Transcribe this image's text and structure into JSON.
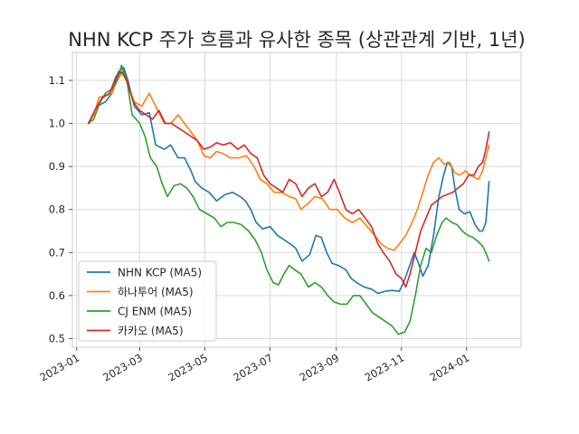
{
  "chart_data": {
    "type": "line",
    "title": "NHN KCP 주가 흐름과 유사한 종목 (상관관계 기반, 1년)",
    "xlabel": "",
    "ylabel": "",
    "xlim": [
      "2022-12-28",
      "2024-02-21"
    ],
    "ylim": [
      0.48,
      1.165
    ],
    "yticks": [
      0.5,
      0.6,
      0.7,
      0.8,
      0.9,
      1.0,
      1.1
    ],
    "ytick_labels": [
      "0.5",
      "0.6",
      "0.7",
      "0.8",
      "0.9",
      "1.0",
      "1.1"
    ],
    "xticks": [
      "2023-01-01",
      "2023-03-01",
      "2023-05-01",
      "2023-07-01",
      "2023-09-01",
      "2023-11-01",
      "2024-01-01"
    ],
    "xtick_labels": [
      "2023-01",
      "2023-03",
      "2023-05",
      "2023-07",
      "2023-09",
      "2023-11",
      "2024-01"
    ],
    "grid": true,
    "legend": "lower-left",
    "series": [
      {
        "name": "NHN KCP (MA5)",
        "color": "#1f77b4",
        "points": [
          [
            "2023-01-12",
            1.0
          ],
          [
            "2023-01-20",
            1.04
          ],
          [
            "2023-01-28",
            1.05
          ],
          [
            "2023-02-03",
            1.07
          ],
          [
            "2023-02-09",
            1.12
          ],
          [
            "2023-02-14",
            1.13
          ],
          [
            "2023-02-18",
            1.1
          ],
          [
            "2023-02-24",
            1.04
          ],
          [
            "2023-03-03",
            1.02
          ],
          [
            "2023-03-10",
            1.025
          ],
          [
            "2023-03-16",
            0.95
          ],
          [
            "2023-03-24",
            0.94
          ],
          [
            "2023-03-30",
            0.95
          ],
          [
            "2023-04-06",
            0.92
          ],
          [
            "2023-04-12",
            0.92
          ],
          [
            "2023-04-18",
            0.89
          ],
          [
            "2023-04-22",
            0.865
          ],
          [
            "2023-04-28",
            0.85
          ],
          [
            "2023-05-05",
            0.84
          ],
          [
            "2023-05-12",
            0.82
          ],
          [
            "2023-05-20",
            0.835
          ],
          [
            "2023-05-27",
            0.84
          ],
          [
            "2023-06-03",
            0.83
          ],
          [
            "2023-06-08",
            0.82
          ],
          [
            "2023-06-13",
            0.8
          ],
          [
            "2023-06-18",
            0.77
          ],
          [
            "2023-06-24",
            0.755
          ],
          [
            "2023-07-01",
            0.76
          ],
          [
            "2023-07-08",
            0.74
          ],
          [
            "2023-07-14",
            0.73
          ],
          [
            "2023-07-20",
            0.72
          ],
          [
            "2023-07-25",
            0.71
          ],
          [
            "2023-07-31",
            0.68
          ],
          [
            "2023-08-07",
            0.695
          ],
          [
            "2023-08-13",
            0.74
          ],
          [
            "2023-08-18",
            0.735
          ],
          [
            "2023-08-23",
            0.7
          ],
          [
            "2023-08-28",
            0.675
          ],
          [
            "2023-09-03",
            0.67
          ],
          [
            "2023-09-10",
            0.66
          ],
          [
            "2023-09-15",
            0.64
          ],
          [
            "2023-09-20",
            0.63
          ],
          [
            "2023-09-27",
            0.62
          ],
          [
            "2023-10-04",
            0.615
          ],
          [
            "2023-10-10",
            0.605
          ],
          [
            "2023-10-17",
            0.61
          ],
          [
            "2023-10-23",
            0.612
          ],
          [
            "2023-10-30",
            0.61
          ],
          [
            "2023-11-03",
            0.63
          ],
          [
            "2023-11-08",
            0.665
          ],
          [
            "2023-11-13",
            0.7
          ],
          [
            "2023-11-17",
            0.675
          ],
          [
            "2023-11-21",
            0.645
          ],
          [
            "2023-11-26",
            0.67
          ],
          [
            "2023-12-01",
            0.74
          ],
          [
            "2023-12-06",
            0.83
          ],
          [
            "2023-12-10",
            0.875
          ],
          [
            "2023-12-14",
            0.91
          ],
          [
            "2023-12-18",
            0.9
          ],
          [
            "2023-12-21",
            0.85
          ],
          [
            "2023-12-25",
            0.8
          ],
          [
            "2023-12-30",
            0.79
          ],
          [
            "2024-01-04",
            0.795
          ],
          [
            "2024-01-09",
            0.765
          ],
          [
            "2024-01-13",
            0.75
          ],
          [
            "2024-01-16",
            0.75
          ],
          [
            "2024-01-19",
            0.77
          ],
          [
            "2024-01-22",
            0.865
          ]
        ]
      },
      {
        "name": "하나투어 (MA5)",
        "color": "#ff7f0e",
        "points": [
          [
            "2023-01-12",
            1.0
          ],
          [
            "2023-01-17",
            1.02
          ],
          [
            "2023-01-22",
            1.06
          ],
          [
            "2023-01-28",
            1.065
          ],
          [
            "2023-02-03",
            1.07
          ],
          [
            "2023-02-08",
            1.1
          ],
          [
            "2023-02-13",
            1.12
          ],
          [
            "2023-02-18",
            1.09
          ],
          [
            "2023-02-24",
            1.05
          ],
          [
            "2023-03-03",
            1.04
          ],
          [
            "2023-03-10",
            1.07
          ],
          [
            "2023-03-16",
            1.04
          ],
          [
            "2023-03-24",
            1.0
          ],
          [
            "2023-03-30",
            1.0
          ],
          [
            "2023-04-06",
            1.02
          ],
          [
            "2023-04-12",
            1.0
          ],
          [
            "2023-04-18",
            0.98
          ],
          [
            "2023-04-24",
            0.96
          ],
          [
            "2023-04-30",
            0.925
          ],
          [
            "2023-05-06",
            0.92
          ],
          [
            "2023-05-12",
            0.935
          ],
          [
            "2023-05-18",
            0.93
          ],
          [
            "2023-05-25",
            0.92
          ],
          [
            "2023-06-02",
            0.92
          ],
          [
            "2023-06-09",
            0.925
          ],
          [
            "2023-06-16",
            0.9
          ],
          [
            "2023-06-22",
            0.87
          ],
          [
            "2023-06-28",
            0.86
          ],
          [
            "2023-07-05",
            0.84
          ],
          [
            "2023-07-12",
            0.84
          ],
          [
            "2023-07-19",
            0.83
          ],
          [
            "2023-07-25",
            0.825
          ],
          [
            "2023-07-30",
            0.8
          ],
          [
            "2023-08-06",
            0.815
          ],
          [
            "2023-08-12",
            0.83
          ],
          [
            "2023-08-19",
            0.825
          ],
          [
            "2023-08-26",
            0.8
          ],
          [
            "2023-09-02",
            0.8
          ],
          [
            "2023-09-09",
            0.78
          ],
          [
            "2023-09-16",
            0.77
          ],
          [
            "2023-09-23",
            0.78
          ],
          [
            "2023-09-30",
            0.76
          ],
          [
            "2023-10-07",
            0.74
          ],
          [
            "2023-10-13",
            0.72
          ],
          [
            "2023-10-19",
            0.71
          ],
          [
            "2023-10-25",
            0.705
          ],
          [
            "2023-10-30",
            0.72
          ],
          [
            "2023-11-05",
            0.74
          ],
          [
            "2023-11-11",
            0.77
          ],
          [
            "2023-11-16",
            0.8
          ],
          [
            "2023-11-21",
            0.84
          ],
          [
            "2023-11-26",
            0.88
          ],
          [
            "2023-12-01",
            0.91
          ],
          [
            "2023-12-06",
            0.92
          ],
          [
            "2023-12-11",
            0.905
          ],
          [
            "2023-12-16",
            0.91
          ],
          [
            "2023-12-21",
            0.885
          ],
          [
            "2023-12-26",
            0.88
          ],
          [
            "2023-12-31",
            0.89
          ],
          [
            "2024-01-04",
            0.88
          ],
          [
            "2024-01-08",
            0.875
          ],
          [
            "2024-01-12",
            0.87
          ],
          [
            "2024-01-16",
            0.89
          ],
          [
            "2024-01-20",
            0.93
          ],
          [
            "2024-01-22",
            0.95
          ]
        ]
      },
      {
        "name": "CJ ENM (MA5)",
        "color": "#2ca02c",
        "points": [
          [
            "2023-01-12",
            1.0
          ],
          [
            "2023-01-17",
            1.01
          ],
          [
            "2023-01-23",
            1.05
          ],
          [
            "2023-01-28",
            1.07
          ],
          [
            "2023-02-03",
            1.08
          ],
          [
            "2023-02-08",
            1.1
          ],
          [
            "2023-02-12",
            1.135
          ],
          [
            "2023-02-17",
            1.1
          ],
          [
            "2023-02-22",
            1.02
          ],
          [
            "2023-03-01",
            1.0
          ],
          [
            "2023-03-06",
            0.97
          ],
          [
            "2023-03-11",
            0.92
          ],
          [
            "2023-03-17",
            0.9
          ],
          [
            "2023-03-22",
            0.86
          ],
          [
            "2023-03-27",
            0.83
          ],
          [
            "2023-04-02",
            0.855
          ],
          [
            "2023-04-08",
            0.86
          ],
          [
            "2023-04-14",
            0.85
          ],
          [
            "2023-04-20",
            0.83
          ],
          [
            "2023-04-26",
            0.8
          ],
          [
            "2023-05-03",
            0.79
          ],
          [
            "2023-05-10",
            0.78
          ],
          [
            "2023-05-16",
            0.76
          ],
          [
            "2023-05-22",
            0.77
          ],
          [
            "2023-05-28",
            0.77
          ],
          [
            "2023-06-04",
            0.765
          ],
          [
            "2023-06-11",
            0.75
          ],
          [
            "2023-06-17",
            0.73
          ],
          [
            "2023-06-23",
            0.7
          ],
          [
            "2023-06-28",
            0.66
          ],
          [
            "2023-07-04",
            0.63
          ],
          [
            "2023-07-09",
            0.625
          ],
          [
            "2023-07-14",
            0.65
          ],
          [
            "2023-07-19",
            0.67
          ],
          [
            "2023-07-24",
            0.66
          ],
          [
            "2023-07-30",
            0.65
          ],
          [
            "2023-08-06",
            0.62
          ],
          [
            "2023-08-12",
            0.63
          ],
          [
            "2023-08-18",
            0.62
          ],
          [
            "2023-08-24",
            0.6
          ],
          [
            "2023-08-30",
            0.585
          ],
          [
            "2023-09-05",
            0.58
          ],
          [
            "2023-09-11",
            0.58
          ],
          [
            "2023-09-17",
            0.6
          ],
          [
            "2023-09-23",
            0.6
          ],
          [
            "2023-09-29",
            0.58
          ],
          [
            "2023-10-05",
            0.56
          ],
          [
            "2023-10-11",
            0.55
          ],
          [
            "2023-10-17",
            0.54
          ],
          [
            "2023-10-23",
            0.53
          ],
          [
            "2023-10-29",
            0.51
          ],
          [
            "2023-11-04",
            0.515
          ],
          [
            "2023-11-09",
            0.54
          ],
          [
            "2023-11-14",
            0.6
          ],
          [
            "2023-11-19",
            0.67
          ],
          [
            "2023-11-24",
            0.71
          ],
          [
            "2023-11-29",
            0.7
          ],
          [
            "2023-12-04",
            0.74
          ],
          [
            "2023-12-09",
            0.77
          ],
          [
            "2023-12-13",
            0.78
          ],
          [
            "2023-12-18",
            0.77
          ],
          [
            "2023-12-23",
            0.765
          ],
          [
            "2023-12-28",
            0.75
          ],
          [
            "2024-01-02",
            0.74
          ],
          [
            "2024-01-07",
            0.735
          ],
          [
            "2024-01-12",
            0.725
          ],
          [
            "2024-01-16",
            0.715
          ],
          [
            "2024-01-19",
            0.7
          ],
          [
            "2024-01-22",
            0.68
          ]
        ]
      },
      {
        "name": "카카오 (MA5)",
        "color": "#d62728",
        "points": [
          [
            "2023-01-12",
            1.0
          ],
          [
            "2023-01-18",
            1.03
          ],
          [
            "2023-01-25",
            1.06
          ],
          [
            "2023-02-01",
            1.07
          ],
          [
            "2023-02-07",
            1.11
          ],
          [
            "2023-02-12",
            1.12
          ],
          [
            "2023-02-17",
            1.1
          ],
          [
            "2023-02-23",
            1.05
          ],
          [
            "2023-03-01",
            1.03
          ],
          [
            "2023-03-07",
            1.02
          ],
          [
            "2023-03-13",
            1.01
          ],
          [
            "2023-03-19",
            1.03
          ],
          [
            "2023-03-25",
            1.0
          ],
          [
            "2023-03-31",
            1.0
          ],
          [
            "2023-04-06",
            0.99
          ],
          [
            "2023-04-12",
            0.98
          ],
          [
            "2023-04-18",
            0.97
          ],
          [
            "2023-04-24",
            0.96
          ],
          [
            "2023-04-30",
            0.94
          ],
          [
            "2023-05-06",
            0.945
          ],
          [
            "2023-05-12",
            0.955
          ],
          [
            "2023-05-18",
            0.95
          ],
          [
            "2023-05-25",
            0.955
          ],
          [
            "2023-06-01",
            0.94
          ],
          [
            "2023-06-07",
            0.95
          ],
          [
            "2023-06-13",
            0.93
          ],
          [
            "2023-06-19",
            0.92
          ],
          [
            "2023-06-25",
            0.88
          ],
          [
            "2023-07-01",
            0.86
          ],
          [
            "2023-07-07",
            0.85
          ],
          [
            "2023-07-13",
            0.84
          ],
          [
            "2023-07-19",
            0.87
          ],
          [
            "2023-07-25",
            0.86
          ],
          [
            "2023-07-31",
            0.83
          ],
          [
            "2023-08-06",
            0.85
          ],
          [
            "2023-08-12",
            0.86
          ],
          [
            "2023-08-18",
            0.83
          ],
          [
            "2023-08-24",
            0.84
          ],
          [
            "2023-08-30",
            0.87
          ],
          [
            "2023-09-04",
            0.84
          ],
          [
            "2023-09-10",
            0.8
          ],
          [
            "2023-09-16",
            0.79
          ],
          [
            "2023-09-22",
            0.8
          ],
          [
            "2023-09-28",
            0.78
          ],
          [
            "2023-10-04",
            0.76
          ],
          [
            "2023-10-10",
            0.72
          ],
          [
            "2023-10-15",
            0.7
          ],
          [
            "2023-10-21",
            0.68
          ],
          [
            "2023-10-27",
            0.65
          ],
          [
            "2023-11-01",
            0.64
          ],
          [
            "2023-11-05",
            0.62
          ],
          [
            "2023-11-09",
            0.65
          ],
          [
            "2023-11-14",
            0.7
          ],
          [
            "2023-11-19",
            0.75
          ],
          [
            "2023-11-24",
            0.78
          ],
          [
            "2023-11-29",
            0.81
          ],
          [
            "2023-12-04",
            0.82
          ],
          [
            "2023-12-09",
            0.83
          ],
          [
            "2023-12-14",
            0.835
          ],
          [
            "2023-12-19",
            0.84
          ],
          [
            "2023-12-24",
            0.85
          ],
          [
            "2023-12-29",
            0.86
          ],
          [
            "2024-01-03",
            0.88
          ],
          [
            "2024-01-08",
            0.88
          ],
          [
            "2024-01-12",
            0.9
          ],
          [
            "2024-01-16",
            0.91
          ],
          [
            "2024-01-19",
            0.94
          ],
          [
            "2024-01-22",
            0.98
          ]
        ]
      }
    ]
  }
}
